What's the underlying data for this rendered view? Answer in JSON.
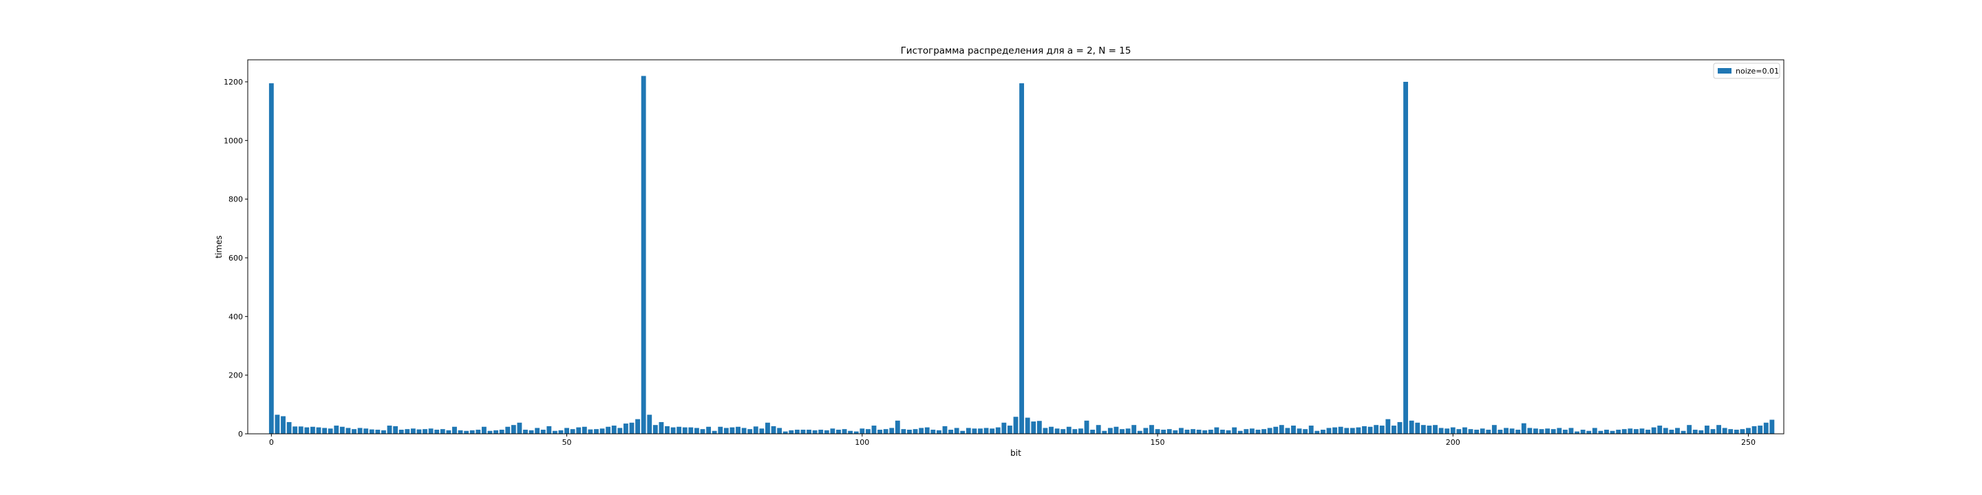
{
  "chart_data": {
    "type": "bar",
    "title": "Гистограмма распределения для a = 2, N = 15",
    "xlabel": "bit",
    "ylabel": "times",
    "xlim": [
      -4,
      256
    ],
    "ylim": [
      0,
      1275
    ],
    "xticks": [
      0,
      50,
      100,
      150,
      200,
      250
    ],
    "yticks": [
      0,
      200,
      400,
      600,
      800,
      1000,
      1200
    ],
    "grid": false,
    "legend_position": "top-right",
    "colors": {
      "bar": "#1f77b4",
      "axes": "#000000",
      "background": "#ffffff"
    },
    "series": [
      {
        "name": "noize=0.01",
        "x_start": 0,
        "values": [
          1195,
          65,
          60,
          40,
          25,
          25,
          22,
          24,
          22,
          20,
          18,
          28,
          24,
          20,
          16,
          20,
          18,
          15,
          14,
          12,
          28,
          26,
          14,
          16,
          18,
          15,
          16,
          18,
          14,
          16,
          12,
          24,
          12,
          10,
          12,
          14,
          24,
          10,
          12,
          14,
          24,
          30,
          38,
          14,
          12,
          20,
          14,
          26,
          10,
          12,
          20,
          16,
          22,
          24,
          15,
          16,
          18,
          24,
          28,
          20,
          35,
          38,
          50,
          1220,
          65,
          30,
          40,
          26,
          22,
          24,
          22,
          22,
          20,
          16,
          24,
          10,
          24,
          20,
          22,
          24,
          20,
          16,
          25,
          18,
          38,
          26,
          20,
          8,
          12,
          14,
          14,
          14,
          12,
          14,
          12,
          18,
          14,
          16,
          10,
          8,
          18,
          16,
          28,
          14,
          16,
          20,
          45,
          16,
          14,
          16,
          20,
          22,
          14,
          12,
          26,
          14,
          20,
          10,
          20,
          18,
          18,
          20,
          18,
          22,
          38,
          28,
          58,
          1195,
          55,
          42,
          44,
          20,
          24,
          18,
          16,
          24,
          16,
          18,
          45,
          14,
          30,
          10,
          20,
          24,
          16,
          18,
          30,
          10,
          20,
          30,
          16,
          14,
          16,
          12,
          20,
          14,
          16,
          14,
          12,
          14,
          22,
          14,
          12,
          22,
          10,
          16,
          18,
          14,
          16,
          20,
          24,
          30,
          20,
          28,
          18,
          16,
          28,
          10,
          14,
          20,
          22,
          24,
          20,
          20,
          22,
          26,
          24,
          30,
          28,
          50,
          28,
          40,
          1200,
          45,
          38,
          30,
          28,
          30,
          20,
          18,
          22,
          16,
          22,
          16,
          14,
          18,
          14,
          30,
          14,
          20,
          18,
          14,
          36,
          20,
          18,
          16,
          18,
          16,
          20,
          14,
          20,
          8,
          14,
          10,
          20,
          10,
          14,
          10,
          14,
          16,
          18,
          16,
          18,
          14,
          22,
          28,
          20,
          14,
          20,
          10,
          30,
          14,
          12,
          28,
          16,
          30,
          20,
          16,
          14,
          16,
          20,
          26,
          28,
          38,
          48
        ]
      }
    ]
  }
}
